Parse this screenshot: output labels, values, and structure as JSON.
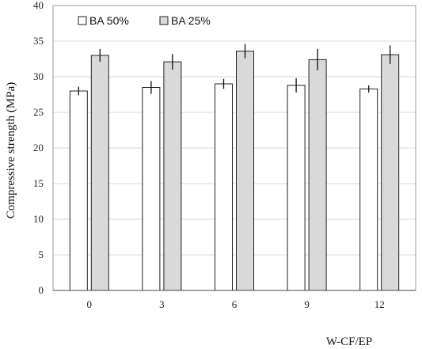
{
  "chart_data": {
    "type": "bar",
    "title": "",
    "xlabel": "W-CF/EP",
    "ylabel": "Compressive strength (MPa)",
    "categories": [
      "0",
      "3",
      "6",
      "9",
      "12"
    ],
    "ylim": [
      0,
      40
    ],
    "yticks": [
      0,
      5,
      10,
      15,
      20,
      25,
      30,
      35,
      40
    ],
    "grid": true,
    "legend_position": "top-left",
    "series": [
      {
        "name": "BA 50%",
        "values": [
          28.0,
          28.5,
          29.0,
          28.8,
          28.3
        ],
        "errors": [
          0.6,
          0.9,
          0.7,
          1.0,
          0.5
        ],
        "color": "#ffffff"
      },
      {
        "name": "BA 25%",
        "values": [
          33.0,
          32.1,
          33.6,
          32.4,
          33.1
        ],
        "errors": [
          0.9,
          1.1,
          1.0,
          1.5,
          1.3
        ],
        "color": "#d9d9d9"
      }
    ]
  }
}
